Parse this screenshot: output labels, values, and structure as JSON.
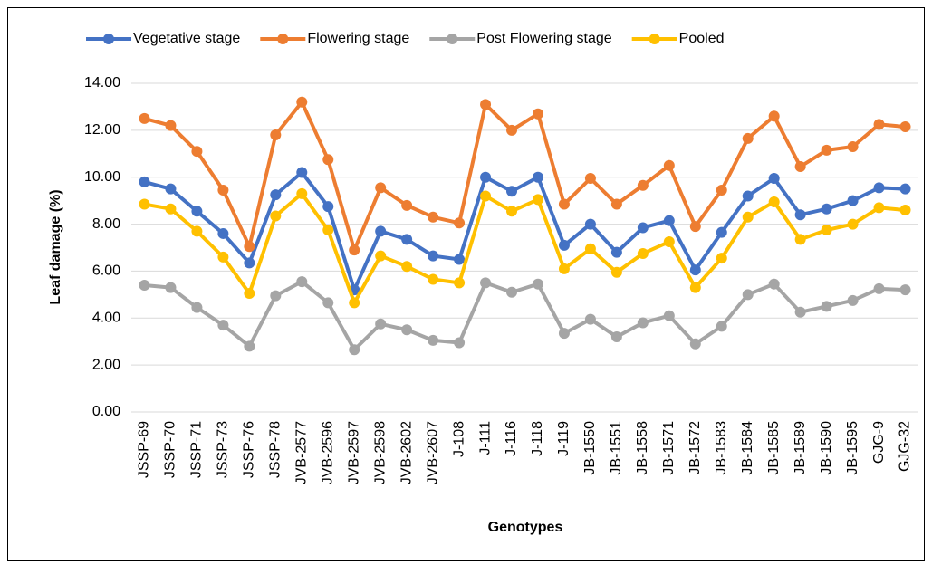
{
  "chart_data": {
    "type": "line",
    "xlabel": "Genotypes",
    "ylabel": "Leaf damage (%)",
    "categories": [
      "JSSP-69",
      "JSSP-70",
      "JSSP-71",
      "JSSP-73",
      "JSSP-76",
      "JSSP-78",
      "JVB-2577",
      "JVB-2596",
      "JVB-2597",
      "JVB-2598",
      "JVB-2602",
      "JVB-2607",
      "J-108",
      "J-111",
      "J-116",
      "J-118",
      "J-119",
      "JB-1550",
      "JB-1551",
      "JB-1558",
      "JB-1571",
      "JB-1572",
      "JB-1583",
      "JB-1584",
      "JB-1585",
      "JB-1589",
      "JB-1590",
      "JB-1595",
      "GJG-9",
      "GJG-32"
    ],
    "series": [
      {
        "name": "Vegetative stage",
        "color": "#4472c4",
        "values": [
          9.8,
          9.5,
          8.55,
          7.6,
          6.35,
          9.25,
          10.2,
          8.75,
          5.2,
          7.7,
          7.35,
          6.65,
          6.5,
          10.0,
          9.4,
          10.0,
          7.1,
          8.0,
          6.8,
          7.85,
          8.15,
          6.05,
          7.65,
          9.2,
          9.95,
          8.4,
          8.65,
          9.0,
          9.55,
          9.5
        ]
      },
      {
        "name": "Flowering stage",
        "color": "#ed7d31",
        "values": [
          12.5,
          12.2,
          11.1,
          9.45,
          7.05,
          11.8,
          13.2,
          10.75,
          6.9,
          9.55,
          8.8,
          8.3,
          8.05,
          13.1,
          12.0,
          12.7,
          8.85,
          9.95,
          8.85,
          9.65,
          10.5,
          7.9,
          9.45,
          11.65,
          12.6,
          10.45,
          11.15,
          11.3,
          12.25,
          12.15
        ]
      },
      {
        "name": "Post Flowering stage",
        "color": "#a5a5a5",
        "values": [
          5.4,
          5.3,
          4.45,
          3.7,
          2.8,
          4.95,
          5.55,
          4.65,
          2.65,
          3.75,
          3.5,
          3.05,
          2.95,
          5.5,
          5.1,
          5.45,
          3.35,
          3.95,
          3.2,
          3.8,
          4.1,
          2.9,
          3.65,
          5.0,
          5.45,
          4.25,
          4.5,
          4.75,
          5.25,
          5.2
        ]
      },
      {
        "name": "Pooled",
        "color": "#ffc000",
        "values": [
          8.85,
          8.65,
          7.7,
          6.6,
          5.05,
          8.35,
          9.3,
          7.75,
          4.65,
          6.65,
          6.2,
          5.65,
          5.5,
          9.2,
          8.55,
          9.05,
          6.1,
          6.95,
          5.95,
          6.75,
          7.25,
          5.3,
          6.55,
          8.3,
          8.95,
          7.35,
          7.75,
          8.0,
          8.7,
          8.6
        ]
      }
    ],
    "ylim": [
      0,
      14
    ],
    "yticks": [
      {
        "value": 0,
        "label": "0.00"
      },
      {
        "value": 2,
        "label": "2.00"
      },
      {
        "value": 4,
        "label": "4.00"
      },
      {
        "value": 6,
        "label": "6.00"
      },
      {
        "value": 8,
        "label": "8.00"
      },
      {
        "value": 10,
        "label": "10.00"
      },
      {
        "value": 12,
        "label": "12.00"
      },
      {
        "value": 14,
        "label": "14.00"
      }
    ],
    "grid": true,
    "legend": "top"
  }
}
